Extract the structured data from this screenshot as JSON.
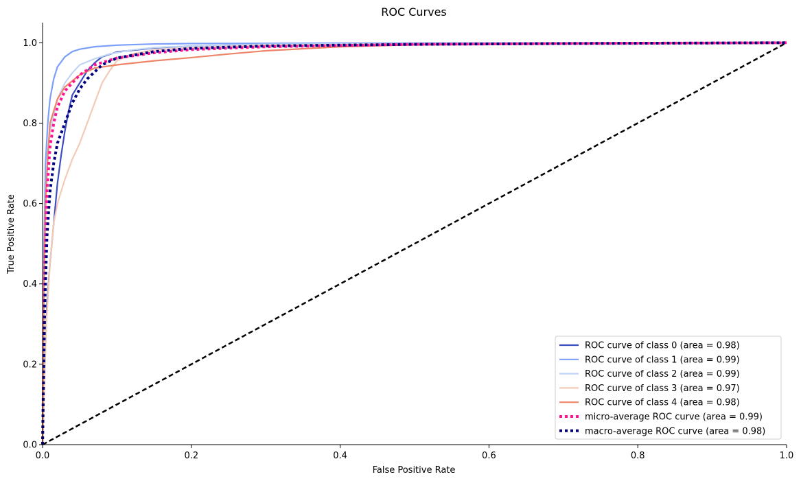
{
  "chart_data": {
    "type": "line",
    "title": "ROC Curves",
    "xlabel": "False Positive Rate",
    "ylabel": "True Positive Rate",
    "xlim": [
      0.0,
      1.0
    ],
    "ylim": [
      0.0,
      1.05
    ],
    "x_ticks": [
      "0.0",
      "0.2",
      "0.4",
      "0.6",
      "0.8",
      "1.0"
    ],
    "y_ticks": [
      "0.0",
      "0.2",
      "0.4",
      "0.6",
      "0.8",
      "1.0"
    ],
    "grid": false,
    "legend_position": "lower-right",
    "series": [
      {
        "name": "ROC curve of class 0 (area = 0.98)",
        "color": "#3b4cc0",
        "style": "solid",
        "points": [
          [
            0,
            0
          ],
          [
            0.003,
            0.2
          ],
          [
            0.006,
            0.35
          ],
          [
            0.01,
            0.45
          ],
          [
            0.015,
            0.55
          ],
          [
            0.02,
            0.65
          ],
          [
            0.025,
            0.72
          ],
          [
            0.03,
            0.78
          ],
          [
            0.035,
            0.83
          ],
          [
            0.04,
            0.87
          ],
          [
            0.05,
            0.9
          ],
          [
            0.06,
            0.93
          ],
          [
            0.07,
            0.95
          ],
          [
            0.08,
            0.965
          ],
          [
            0.1,
            0.977
          ],
          [
            0.15,
            0.987
          ],
          [
            0.2,
            0.992
          ],
          [
            0.3,
            0.996
          ],
          [
            0.5,
            0.998
          ],
          [
            0.7,
            0.999
          ],
          [
            1,
            1
          ]
        ]
      },
      {
        "name": "ROC curve of class 1 (area = 0.99)",
        "color": "#7b9ff9",
        "style": "solid",
        "points": [
          [
            0,
            0
          ],
          [
            0.002,
            0.5
          ],
          [
            0.004,
            0.7
          ],
          [
            0.007,
            0.8
          ],
          [
            0.01,
            0.86
          ],
          [
            0.015,
            0.91
          ],
          [
            0.02,
            0.94
          ],
          [
            0.03,
            0.965
          ],
          [
            0.04,
            0.978
          ],
          [
            0.05,
            0.984
          ],
          [
            0.07,
            0.99
          ],
          [
            0.1,
            0.994
          ],
          [
            0.15,
            0.997
          ],
          [
            0.2,
            0.998
          ],
          [
            0.4,
            0.999
          ],
          [
            1,
            1
          ]
        ]
      },
      {
        "name": "ROC curve of class 2 (area = 0.99)",
        "color": "#c0d4f5",
        "style": "solid",
        "points": [
          [
            0,
            0
          ],
          [
            0.002,
            0.4
          ],
          [
            0.005,
            0.65
          ],
          [
            0.01,
            0.78
          ],
          [
            0.02,
            0.86
          ],
          [
            0.03,
            0.9
          ],
          [
            0.04,
            0.925
          ],
          [
            0.05,
            0.945
          ],
          [
            0.07,
            0.96
          ],
          [
            0.09,
            0.972
          ],
          [
            0.12,
            0.982
          ],
          [
            0.15,
            0.988
          ],
          [
            0.2,
            0.992
          ],
          [
            0.3,
            0.996
          ],
          [
            0.5,
            0.998
          ],
          [
            1,
            1
          ]
        ]
      },
      {
        "name": "ROC curve of class 3 (area = 0.97)",
        "color": "#f2cbb7",
        "style": "solid",
        "points": [
          [
            0,
            0
          ],
          [
            0.005,
            0.3
          ],
          [
            0.01,
            0.45
          ],
          [
            0.015,
            0.55
          ],
          [
            0.02,
            0.6
          ],
          [
            0.03,
            0.66
          ],
          [
            0.04,
            0.71
          ],
          [
            0.05,
            0.75
          ],
          [
            0.06,
            0.8
          ],
          [
            0.07,
            0.85
          ],
          [
            0.08,
            0.9
          ],
          [
            0.09,
            0.93
          ],
          [
            0.1,
            0.955
          ],
          [
            0.12,
            0.972
          ],
          [
            0.15,
            0.982
          ],
          [
            0.2,
            0.988
          ],
          [
            0.3,
            0.994
          ],
          [
            0.5,
            0.997
          ],
          [
            1,
            1
          ]
        ]
      },
      {
        "name": "ROC curve of class 4 (area = 0.98)",
        "color": "#ee8468",
        "style": "solid",
        "points": [
          [
            0,
            0
          ],
          [
            0.002,
            0.4
          ],
          [
            0.004,
            0.6
          ],
          [
            0.007,
            0.72
          ],
          [
            0.01,
            0.8
          ],
          [
            0.02,
            0.86
          ],
          [
            0.03,
            0.89
          ],
          [
            0.05,
            0.92
          ],
          [
            0.07,
            0.937
          ],
          [
            0.1,
            0.945
          ],
          [
            0.15,
            0.955
          ],
          [
            0.2,
            0.963
          ],
          [
            0.25,
            0.972
          ],
          [
            0.3,
            0.98
          ],
          [
            0.4,
            0.99
          ],
          [
            0.5,
            0.995
          ],
          [
            0.7,
            0.998
          ],
          [
            1,
            1
          ]
        ]
      },
      {
        "name": "micro-average ROC curve (area = 0.99)",
        "color": "#ff1493",
        "style": "dotted",
        "points": [
          [
            0,
            0
          ],
          [
            0.003,
            0.45
          ],
          [
            0.006,
            0.63
          ],
          [
            0.01,
            0.74
          ],
          [
            0.015,
            0.8
          ],
          [
            0.02,
            0.84
          ],
          [
            0.03,
            0.88
          ],
          [
            0.05,
            0.92
          ],
          [
            0.07,
            0.945
          ],
          [
            0.1,
            0.962
          ],
          [
            0.15,
            0.975
          ],
          [
            0.2,
            0.983
          ],
          [
            0.3,
            0.99
          ],
          [
            0.5,
            0.996
          ],
          [
            0.7,
            0.998
          ],
          [
            1,
            1
          ]
        ]
      },
      {
        "name": "macro-average ROC curve (area = 0.98)",
        "color": "#000080",
        "style": "dotted",
        "points": [
          [
            0,
            0
          ],
          [
            0.003,
            0.35
          ],
          [
            0.006,
            0.52
          ],
          [
            0.01,
            0.63
          ],
          [
            0.015,
            0.7
          ],
          [
            0.02,
            0.75
          ],
          [
            0.03,
            0.8
          ],
          [
            0.04,
            0.85
          ],
          [
            0.05,
            0.885
          ],
          [
            0.06,
            0.91
          ],
          [
            0.08,
            0.945
          ],
          [
            0.1,
            0.962
          ],
          [
            0.15,
            0.978
          ],
          [
            0.2,
            0.986
          ],
          [
            0.3,
            0.992
          ],
          [
            0.5,
            0.996
          ],
          [
            0.7,
            0.998
          ],
          [
            1,
            1
          ]
        ]
      },
      {
        "name": "",
        "color": "#000000",
        "style": "dashed",
        "points": [
          [
            0,
            0
          ],
          [
            1,
            1
          ]
        ]
      }
    ]
  }
}
